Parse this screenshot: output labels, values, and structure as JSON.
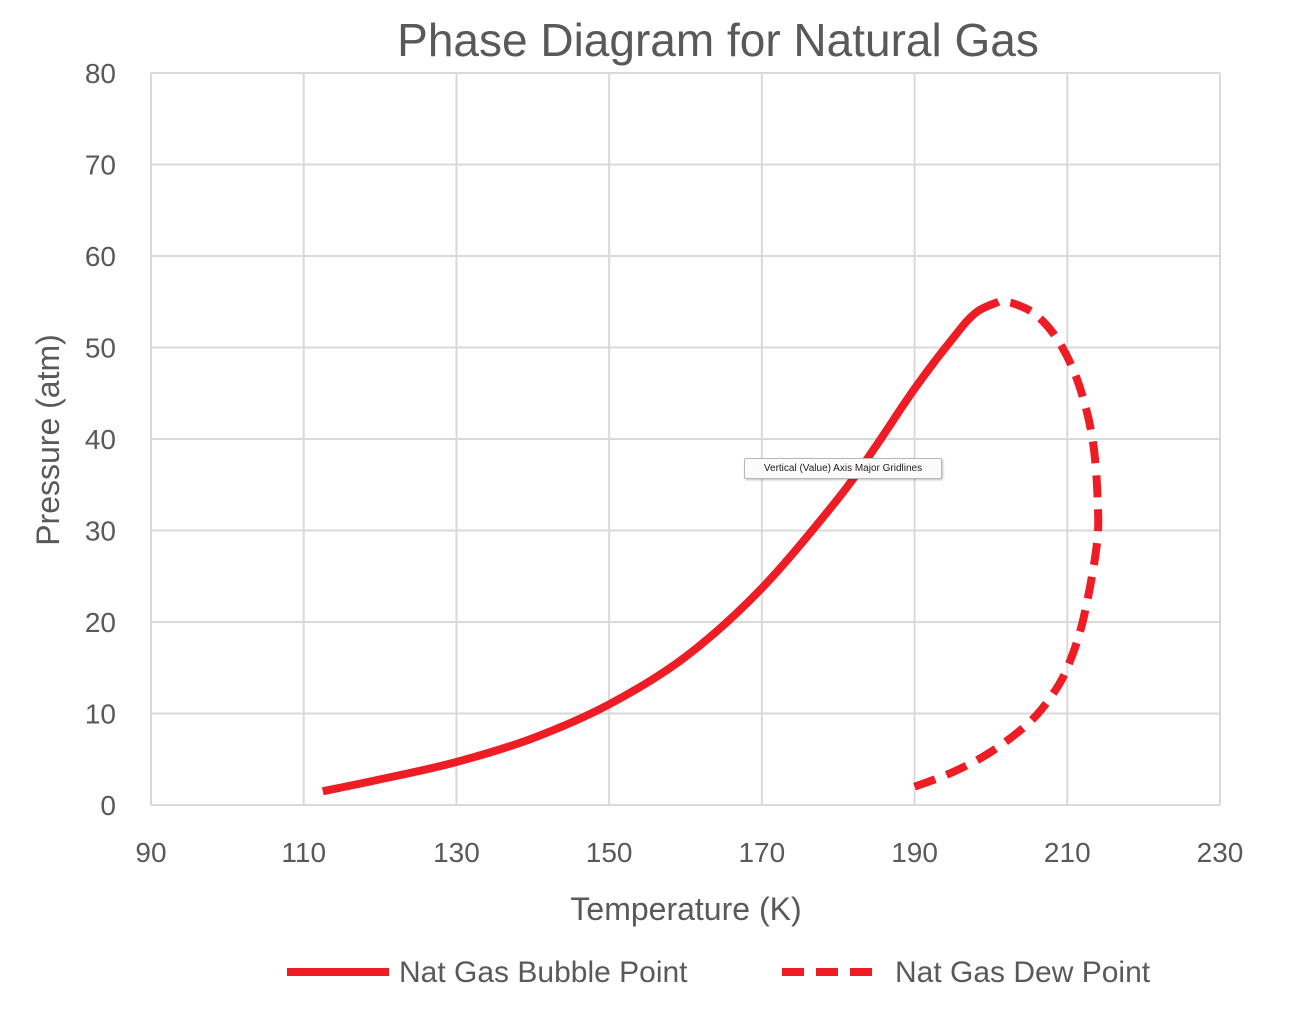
{
  "chart_data": {
    "type": "line",
    "title": "Phase Diagram for Natural Gas",
    "xlabel": "Temperature (K)",
    "ylabel": "Pressure (atm)",
    "xlim": [
      90,
      230
    ],
    "ylim": [
      0,
      80
    ],
    "x_ticks": [
      "90",
      "110",
      "130",
      "150",
      "170",
      "190",
      "210",
      "230"
    ],
    "y_ticks": [
      "0",
      "10",
      "20",
      "30",
      "40",
      "50",
      "60",
      "70",
      "80"
    ],
    "grid": true,
    "legend_position": "bottom",
    "colors": {
      "series": "#ee1c25",
      "grid": "#d9d9d9",
      "text": "#595959"
    },
    "series": [
      {
        "name": "Nat Gas Bubble Point",
        "line_style": "solid",
        "points": [
          [
            112.5,
            1.5
          ],
          [
            120,
            2.8
          ],
          [
            130,
            4.7
          ],
          [
            140,
            7.3
          ],
          [
            150,
            11.0
          ],
          [
            160,
            16.2
          ],
          [
            170,
            23.7
          ],
          [
            180,
            33.5
          ],
          [
            185,
            39.3
          ],
          [
            190,
            45.5
          ],
          [
            195,
            51.0
          ],
          [
            198,
            53.8
          ],
          [
            201,
            55.0
          ]
        ]
      },
      {
        "name": "Nat Gas Dew Point",
        "line_style": "dashed",
        "points": [
          [
            190,
            2.0
          ],
          [
            195,
            3.6
          ],
          [
            200,
            5.8
          ],
          [
            205,
            9.0
          ],
          [
            208,
            12.0
          ],
          [
            210,
            15.0
          ],
          [
            212,
            20.0
          ],
          [
            213.8,
            28.0
          ],
          [
            214,
            33.0
          ],
          [
            213.3,
            40.0
          ],
          [
            211.5,
            46.0
          ],
          [
            209,
            50.5
          ],
          [
            206,
            53.5
          ],
          [
            203,
            54.8
          ],
          [
            201,
            55.0
          ]
        ]
      }
    ]
  },
  "tooltip": {
    "text": "Vertical (Value) Axis Major Gridlines"
  }
}
